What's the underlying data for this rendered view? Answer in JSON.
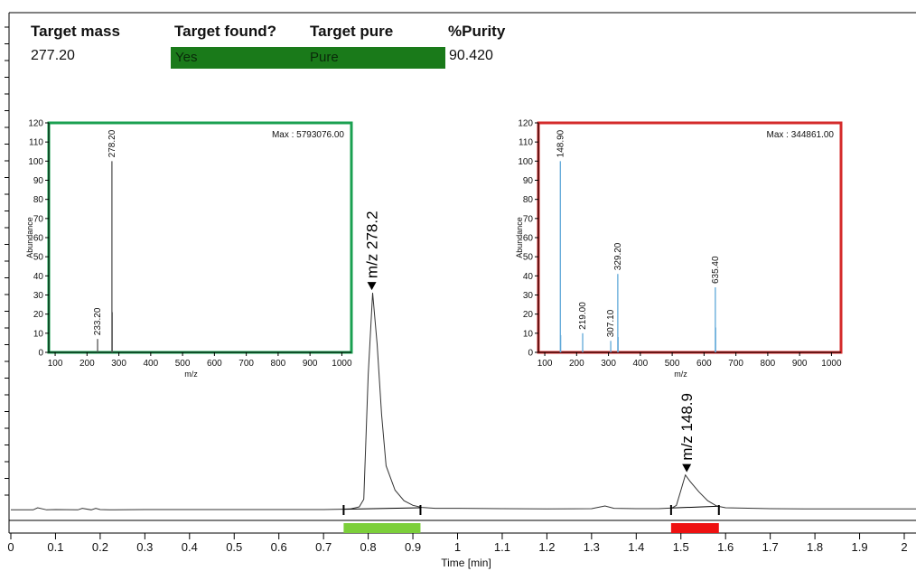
{
  "colors": {
    "green_bar": "#1a7a1a",
    "green_box": "#1aa050",
    "red_box": "#d42a2a",
    "spectrum_line": "#5fa8d8",
    "trace": "#333333",
    "seg_green": "#7ccf3a",
    "seg_red": "#ee1111"
  },
  "header": {
    "target_mass_label": "Target mass",
    "target_found_label": "Target found?",
    "target_pure_label": "Target pure",
    "purity_label": "%Purity",
    "target_mass_value": "277.20",
    "target_found_value": "Yes",
    "target_pure_value": "Pure",
    "purity_value": "90.420"
  },
  "chart_data": [
    {
      "type": "line",
      "name": "chromatogram",
      "xlabel": "Time [min]",
      "ylabel": "",
      "xlim": [
        0,
        2.05
      ],
      "ylim": [
        0,
        100
      ],
      "x_ticks": [
        "0",
        "0.1",
        "0.2",
        "0.3",
        "0.4",
        "0.5",
        "0.6",
        "0.7",
        "0.8",
        "0.9",
        "1",
        "1.1",
        "1.2",
        "1.3",
        "1.4",
        "1.5",
        "1.6",
        "1.7",
        "1.8",
        "1.9",
        "2"
      ],
      "x": [
        0.0,
        0.05,
        0.06,
        0.08,
        0.1,
        0.15,
        0.16,
        0.18,
        0.19,
        0.2,
        0.22,
        0.3,
        0.4,
        0.5,
        0.6,
        0.7,
        0.74,
        0.76,
        0.78,
        0.79,
        0.8,
        0.81,
        0.82,
        0.83,
        0.84,
        0.86,
        0.88,
        0.9,
        0.92,
        0.95,
        1.0,
        1.1,
        1.2,
        1.3,
        1.33,
        1.35,
        1.4,
        1.45,
        1.48,
        1.49,
        1.5,
        1.51,
        1.52,
        1.54,
        1.56,
        1.58,
        1.6,
        1.7,
        1.8,
        1.9,
        2.0,
        2.05
      ],
      "y": [
        0.5,
        0.5,
        1.2,
        0.5,
        0.6,
        0.5,
        1.0,
        0.5,
        1.0,
        0.6,
        0.5,
        0.6,
        0.6,
        0.6,
        0.6,
        0.6,
        0.7,
        0.8,
        1.5,
        4.0,
        45.0,
        72.0,
        55.0,
        32.0,
        15.0,
        7.0,
        3.5,
        2.0,
        1.3,
        1.0,
        1.0,
        0.9,
        0.8,
        0.9,
        1.8,
        1.0,
        0.9,
        0.9,
        1.1,
        2.0,
        7.0,
        12.0,
        10.0,
        6.5,
        3.5,
        1.8,
        1.2,
        0.9,
        0.8,
        0.8,
        0.8,
        0.8
      ],
      "annotations": [
        {
          "text": "m/z 278.2",
          "x": 0.808,
          "y": 72.0
        },
        {
          "text": "m/z 148.9",
          "x": 1.513,
          "y": 12.0
        }
      ],
      "peak_markers": [
        0.745,
        0.917,
        1.478,
        1.585
      ],
      "segments": [
        {
          "start": 0.745,
          "end": 0.917,
          "color": "green"
        },
        {
          "start": 1.478,
          "end": 1.585,
          "color": "red"
        }
      ]
    },
    {
      "type": "bar",
      "name": "spectrum_target",
      "xlabel": "m/z",
      "ylabel": "Abundance",
      "xlim": [
        80,
        1030
      ],
      "ylim": [
        0,
        120
      ],
      "x_ticks": [
        100,
        200,
        300,
        400,
        500,
        600,
        700,
        800,
        900,
        1000
      ],
      "y_ticks": [
        0,
        10,
        20,
        30,
        40,
        50,
        60,
        70,
        80,
        90,
        100,
        110,
        120
      ],
      "max_label": "Max : 5793076.00",
      "peaks": [
        {
          "mz": 233.2,
          "value": 7,
          "label": "233.20"
        },
        {
          "mz": 278.2,
          "value": 100,
          "label": "278.20"
        },
        {
          "mz": 279.2,
          "value": 21,
          "label": ""
        }
      ]
    },
    {
      "type": "bar",
      "name": "spectrum_impurity",
      "xlabel": "m/z",
      "ylabel": "Abundance",
      "xlim": [
        80,
        1030
      ],
      "ylim": [
        0,
        120
      ],
      "x_ticks": [
        100,
        200,
        300,
        400,
        500,
        600,
        700,
        800,
        900,
        1000
      ],
      "y_ticks": [
        0,
        10,
        20,
        30,
        40,
        50,
        60,
        70,
        80,
        90,
        100,
        110,
        120
      ],
      "max_label": "Max : 344861.00",
      "peaks": [
        {
          "mz": 148.9,
          "value": 100,
          "label": "148.90"
        },
        {
          "mz": 149.9,
          "value": 9,
          "label": ""
        },
        {
          "mz": 219.0,
          "value": 10,
          "label": "219.00"
        },
        {
          "mz": 307.1,
          "value": 6,
          "label": "307.10"
        },
        {
          "mz": 329.2,
          "value": 41,
          "label": "329.20"
        },
        {
          "mz": 330.2,
          "value": 8,
          "label": ""
        },
        {
          "mz": 635.4,
          "value": 34,
          "label": "635.40"
        },
        {
          "mz": 636.4,
          "value": 13,
          "label": ""
        }
      ]
    }
  ]
}
